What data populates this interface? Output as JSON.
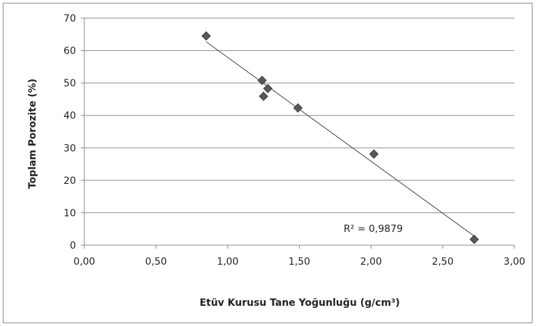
{
  "chart_data": {
    "type": "scatter",
    "title": "",
    "xlabel": "Etüv Kurusu Tane Yoğunluğu (g/cm³)",
    "ylabel": "Toplam Porozite (%)",
    "xlim": [
      0,
      3
    ],
    "ylim": [
      0,
      70
    ],
    "x_ticks": [
      "0,00",
      "0,50",
      "1,00",
      "1,50",
      "2,00",
      "2,50",
      "3,00"
    ],
    "y_ticks": [
      "0",
      "10",
      "20",
      "30",
      "40",
      "50",
      "60",
      "70"
    ],
    "grid": "horizontal",
    "legend": "none",
    "marker": "diamond",
    "marker_color": "#595959",
    "trendline_color": "#404040",
    "series": [
      {
        "points": [
          {
            "x": 0.85,
            "y": 64.5
          },
          {
            "x": 1.24,
            "y": 50.8
          },
          {
            "x": 1.28,
            "y": 48.3
          },
          {
            "x": 1.25,
            "y": 45.9
          },
          {
            "x": 1.49,
            "y": 42.3
          },
          {
            "x": 2.02,
            "y": 28.1
          },
          {
            "x": 2.72,
            "y": 1.8
          }
        ]
      }
    ],
    "trendline": {
      "type": "linear",
      "x_range": [
        0.85,
        2.72
      ],
      "y_at_start": 62.7,
      "y_at_end": 2.8
    },
    "annotation": "R² = 0,9879"
  }
}
